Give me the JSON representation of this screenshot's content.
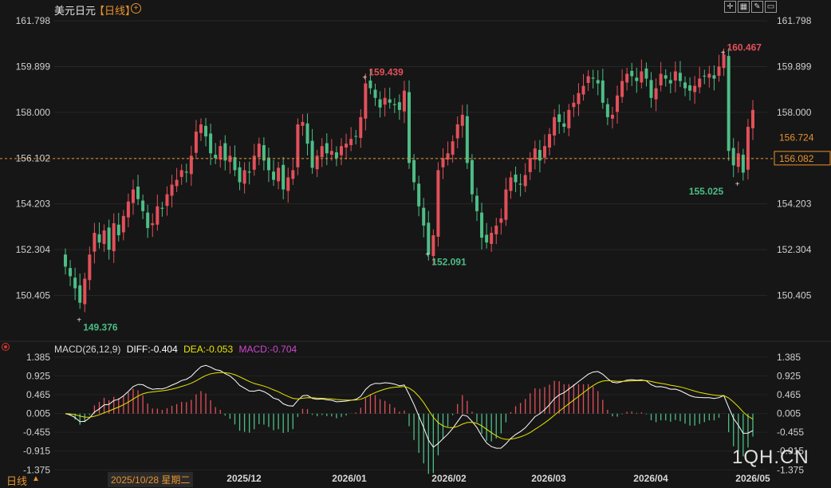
{
  "header": {
    "symbol_name": "美元日元",
    "timeframe_label": "【日线】",
    "tool_icons": [
      "crosshair-icon",
      "grid-icon",
      "draw-icon",
      "window-icon"
    ]
  },
  "colors": {
    "background": "#161616",
    "up": "#e2505a",
    "down": "#4dbd86",
    "accent": "#e8922e",
    "diff_line": "#ffffff",
    "dea_line": "#e6e600",
    "macd_label": "#d046d0"
  },
  "chart_data": [
    {
      "type": "candlestick",
      "ylim": [
        148.6,
        162.0
      ],
      "y_ticks": [
        "161.798",
        "159.899",
        "158.000",
        "156.102",
        "154.203",
        "152.304",
        "150.405"
      ],
      "x_ticks": [
        "2025/12",
        "2026/01",
        "2026/02",
        "2026/03",
        "2026/04",
        "2026/05"
      ],
      "current_price": "156.724",
      "crosshair_price": "156.082",
      "annotations": {
        "max_2025": "159.439",
        "min_2025": "149.376",
        "min_2026_02": "152.091",
        "max_2026_04": "160.467",
        "min_2026_05": "155.025"
      },
      "closes": [
        151.6,
        151.2,
        150.7,
        150.1,
        151.1,
        152.1,
        153.0,
        152.6,
        153.1,
        152.3,
        153.4,
        152.9,
        153.7,
        154.3,
        154.8,
        154.4,
        153.9,
        153.2,
        153.4,
        154.1,
        154.0,
        154.6,
        155.0,
        155.2,
        155.6,
        155.5,
        156.2,
        157.2,
        157.5,
        157.0,
        156.3,
        156.1,
        156.6,
        156.0,
        156.2,
        155.6,
        155.1,
        155.6,
        155.5,
        156.2,
        156.7,
        156.0,
        155.6,
        155.2,
        155.7,
        154.8,
        155.3,
        155.6,
        157.5,
        157.6,
        156.7,
        155.7,
        156.2,
        156.6,
        156.3,
        156.4,
        156.1,
        156.6,
        156.7,
        156.9,
        157.0,
        157.8,
        159.2,
        159.0,
        158.6,
        158.2,
        158.6,
        158.4,
        158.3,
        158.1,
        158.9,
        155.9,
        155.1,
        154.1,
        153.3,
        152.1,
        152.9,
        155.6,
        156.1,
        156.3,
        156.8,
        157.5,
        157.9,
        155.9,
        154.6,
        153.9,
        152.8,
        152.6,
        153.0,
        153.3,
        153.6,
        154.8,
        155.3,
        155.1,
        155.0,
        155.4,
        156.1,
        156.5,
        156.0,
        156.6,
        157.1,
        157.8,
        157.6,
        157.4,
        158.1,
        158.4,
        158.8,
        159.1,
        159.5,
        159.4,
        159.2,
        158.4,
        157.8,
        157.9,
        158.7,
        159.3,
        159.6,
        159.5,
        159.3,
        159.7,
        159.4,
        158.6,
        159.0,
        159.6,
        159.4,
        159.2,
        159.7,
        159.3,
        159.0,
        158.9,
        159.1,
        159.4,
        159.5,
        159.6,
        159.4,
        159.9,
        160.4,
        156.4,
        155.8,
        156.3,
        155.5,
        157.4,
        158.1
      ],
      "macd": {
        "params": "MACD(26,12,9)",
        "diff_label": "DIFF:-0.404",
        "dea_label": "DEA:-0.053",
        "macd_label": "MACD:-0.704",
        "ylim": [
          -1.35,
          1.42
        ],
        "y_ticks": [
          "1.385",
          "0.925",
          "0.465",
          "0.005",
          "-0.455",
          "-0.915",
          "-1.375"
        ]
      }
    }
  ],
  "footer": {
    "timeframe": "日线",
    "selected_date": "2025/10/28 星期二",
    "watermark": "1QH.CN"
  }
}
